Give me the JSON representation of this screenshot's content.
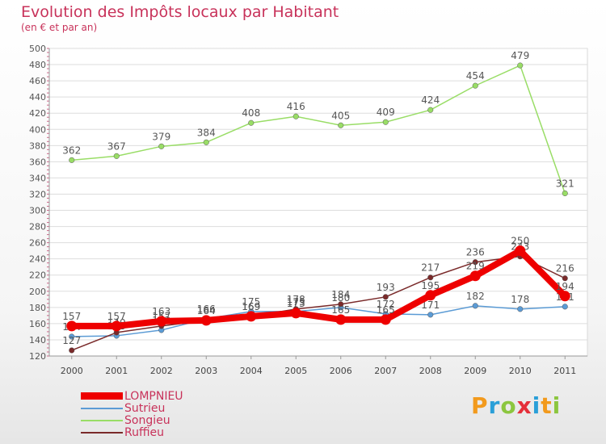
{
  "title": "Evolution des Impôts locaux par Habitant",
  "subtitle": "(en € et par an)",
  "brand": "Proxiti",
  "chart_data": {
    "type": "line",
    "title": "Evolution des Impôts locaux par Habitant",
    "subtitle": "(en € et par an)",
    "xlabel": "",
    "ylabel": "",
    "categories": [
      "2000",
      "2001",
      "2002",
      "2003",
      "2004",
      "2005",
      "2006",
      "2007",
      "2008",
      "2009",
      "2010",
      "2011"
    ],
    "ylim": [
      120,
      500
    ],
    "yticks": [
      120,
      140,
      160,
      180,
      200,
      220,
      240,
      260,
      280,
      300,
      320,
      340,
      360,
      380,
      400,
      420,
      440,
      460,
      480,
      500
    ],
    "legend_position": "bottom-left",
    "series": [
      {
        "name": "Sutrieu",
        "color": "#5b9bd5",
        "values": [
          144,
          145,
          152,
          166,
          175,
          175,
          180,
          172,
          171,
          182,
          178,
          181
        ],
        "labels": [
          "144",
          "145",
          "152",
          "166",
          "175",
          "175",
          "180",
          "172",
          "171",
          "182",
          "178",
          "181"
        ]
      },
      {
        "name": "Songieu",
        "color": "#99dd66",
        "values": [
          362,
          367,
          379,
          384,
          408,
          416,
          405,
          409,
          424,
          454,
          479,
          321
        ],
        "labels": [
          "362",
          "367",
          "379",
          "384",
          "408",
          "416",
          "405",
          "409",
          "424",
          "454",
          "479",
          "321"
        ]
      },
      {
        "name": "Ruffieu",
        "color": "#7a2a2a",
        "values": [
          127,
          149,
          157,
          164,
          169,
          178,
          184,
          193,
          217,
          236,
          243,
          216
        ],
        "labels": [
          "127",
          "149",
          "157",
          "164",
          "169",
          "178",
          "184",
          "193",
          "217",
          "236",
          "243",
          "216"
        ]
      },
      {
        "name": "LOMPNIEU",
        "color": "#ee0000",
        "values": [
          157,
          157,
          163,
          164,
          169,
          173,
          165,
          165,
          195,
          219,
          250,
          194
        ],
        "labels": [
          "157",
          "157",
          "163",
          "164",
          "169",
          "173",
          "165",
          "165",
          "195",
          "219",
          "250",
          "194"
        ]
      }
    ],
    "legend_order": [
      "LOMPNIEU",
      "Sutrieu",
      "Songieu",
      "Ruffieu"
    ]
  }
}
